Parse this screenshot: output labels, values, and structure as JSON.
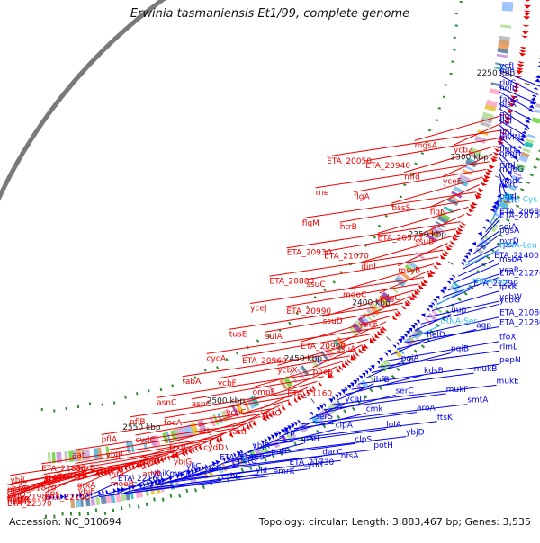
{
  "title": "Erwinia tasmaniensis Et1/99, complete genome",
  "footer": {
    "accession": "Accession: NC_010694",
    "summary": "Topology: circular; Length: 3,883,467 bp; Genes: 3,535"
  },
  "colors": {
    "plus_strand": "#0000ee",
    "minus_strand": "#ee0000",
    "rna": "#33bbee",
    "backbone": "#7a7a7a"
  },
  "scale_ticks": [
    "2550 kbp",
    "2500 kbp",
    "2450 kbp",
    "2400 kbp",
    "2350 kbp",
    "2300 kbp",
    "2250 kbp"
  ],
  "plus_strand_labels": [
    "ETA_22160",
    "mntR",
    "csbC",
    "emrK",
    "ybiK",
    "ybiI",
    "yliI",
    "ybiT",
    "yliC",
    "potG",
    "ETA_21730",
    "nfsA",
    "ETA_21660",
    "potF",
    "dacC",
    "potH",
    "ybjR",
    "potI",
    "clpS",
    "ybjD",
    "lrp",
    "clpA",
    "lolA",
    "ftsK",
    "serS",
    "cmk",
    "aroA",
    "smtA",
    "ycaD",
    "serC",
    "mukF",
    "mukE",
    "ihfB",
    "kdsB",
    "mukB",
    "pepN",
    "pqiA",
    "pqiB",
    "rlmL",
    "tfoX",
    "helD",
    "agp",
    "ETA_21280",
    "ETA_21080",
    "uup",
    "ycbG",
    "ycbW",
    "lpxK",
    "ETA_21290",
    "ETA_21270",
    "ycaR",
    "msbA",
    "ETA_21400",
    "rpsA",
    "pyrD",
    "pgsA",
    "sdiA",
    "ETA_20700",
    "ETA_20680",
    "rutR",
    "phzI",
    "uvrC",
    "ymdC",
    "mdoG",
    "rimJ",
    "opgH",
    "flgH",
    "mviN",
    "flgL",
    "flgI",
    "flgJ",
    "plsX",
    "fabG",
    "holB",
    "rluC",
    "ndh",
    "ycfJ"
  ],
  "rna_labels": [
    "tRNA-Ser",
    "tRNA-Ser",
    "tRNA-Leu",
    "tRNA-Cys"
  ],
  "minus_strand_labels": [
    "ybiS",
    "ETA_22370",
    "mlrA",
    "hutH",
    "ETA_22140",
    "ydjR",
    "ybiO",
    "ETA_21980",
    "ybiF",
    "dps",
    "ETA_21870",
    "moeA",
    "moeB",
    "grxA",
    "artQ",
    "ybjL",
    "artM",
    "infA",
    "poxB",
    "ETA_21830",
    "ybjG",
    "sdaC",
    "ybjP",
    "aat",
    "cydD",
    "trxB",
    "cydC",
    "pflA",
    "artI",
    "artJ",
    "focA",
    "pflB",
    "ycaO",
    "ycbC",
    "aspC",
    "asnC",
    "ETA_21160",
    "ompF",
    "ycbF",
    "fabA",
    "pncB",
    "ycbX",
    "ETA_20960",
    "cycA",
    "ssuA",
    "ETA_20900",
    "sulA",
    "tusE",
    "yecF",
    "ssuD",
    "ETA_20990",
    "yceJ",
    "ydgC",
    "mdoC",
    "ssuC",
    "ETA_20880",
    "msyB",
    "dinI",
    "ETA_21070",
    "ETA_20930",
    "ssuB",
    "ETA_20570",
    "htrB",
    "flgM",
    "flgN",
    "bssS",
    "flgA",
    "rne",
    "yceF",
    "mfd",
    "ETA_20940",
    "ETA_20050",
    "ycbZ",
    "mgsA"
  ]
}
